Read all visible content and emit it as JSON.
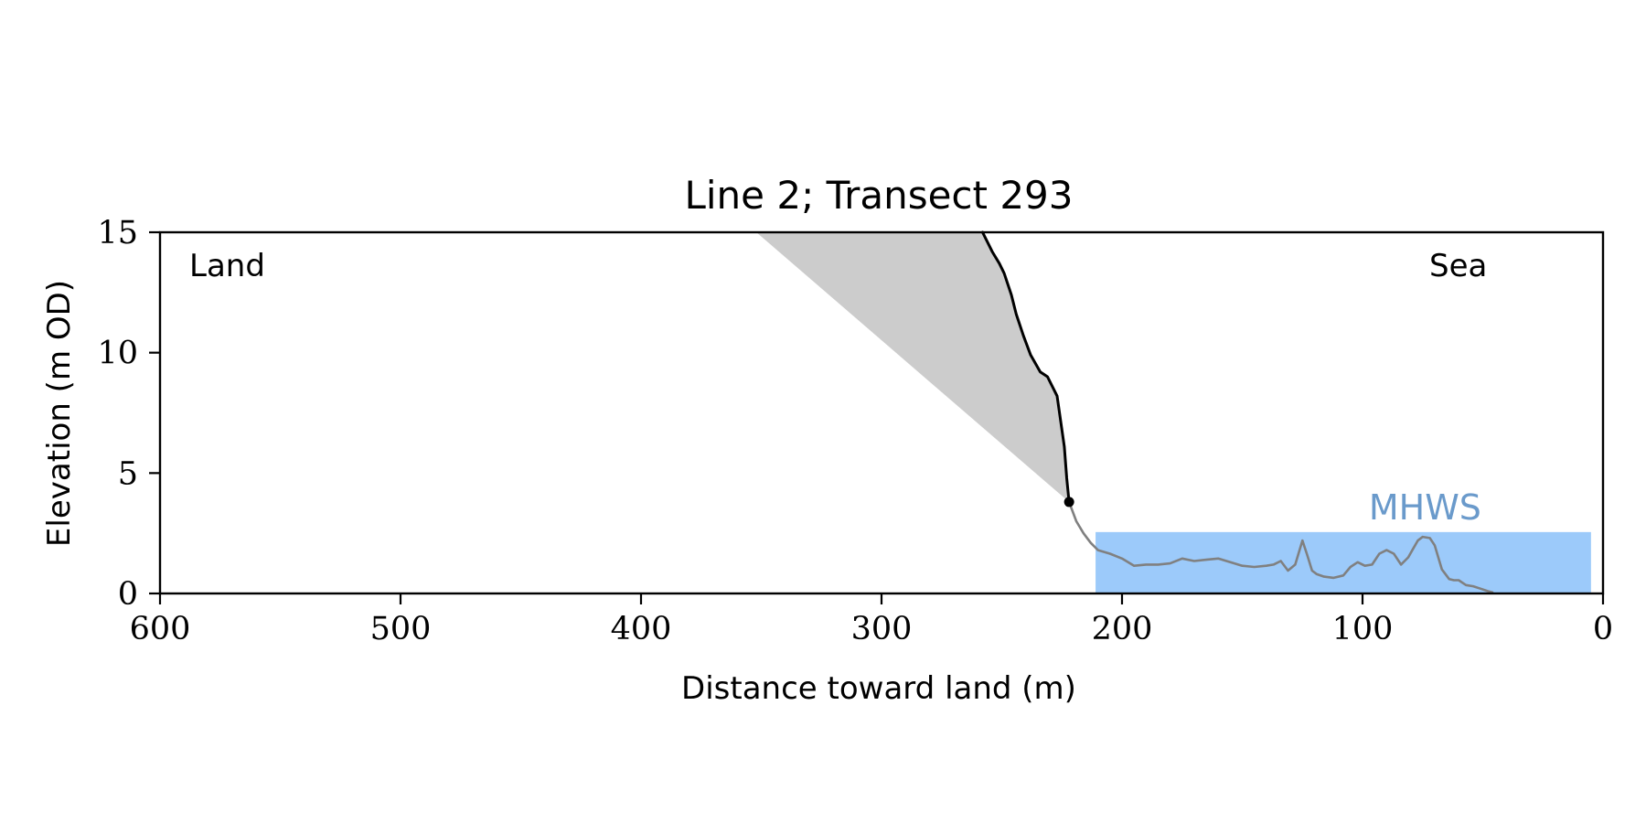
{
  "chart_data": {
    "type": "line",
    "title": "Line 2; Transect 293",
    "xlabel": "Distance toward land (m)",
    "ylabel": "Elevation (m OD)",
    "xlim": [
      600,
      0
    ],
    "ylim": [
      0,
      15
    ],
    "x_reversed": true,
    "xticks": [
      600,
      500,
      400,
      300,
      200,
      100,
      0
    ],
    "yticks": [
      0,
      5,
      10,
      15
    ],
    "grid": false,
    "annotations": {
      "left": "Land",
      "right": "Sea"
    },
    "mhws": {
      "label": "MHWS",
      "level": 2.55,
      "x_range": [
        211,
        5
      ],
      "fill_color": "#9ccafa",
      "label_color": "#6a9acb"
    },
    "shaded_region": {
      "color": "#cccccc",
      "x_top": [
        352,
        258
      ],
      "apex": [
        222,
        3.8
      ]
    },
    "series": [
      {
        "kind": "cliff",
        "color": "#000000",
        "x": [
          258,
          254,
          251,
          249,
          246,
          244,
          241,
          238,
          234,
          231,
          227,
          224,
          223,
          222
        ],
        "y": [
          15.0,
          14.2,
          13.7,
          13.3,
          12.4,
          11.6,
          10.7,
          9.9,
          9.2,
          9.0,
          8.2,
          6.1,
          4.8,
          3.8
        ]
      },
      {
        "kind": "foreshore",
        "color": "#808080",
        "x": [
          222,
          219,
          216,
          213,
          210,
          205,
          200,
          195,
          190,
          185,
          180,
          175,
          170,
          165,
          160,
          155,
          150,
          145,
          140,
          137,
          134,
          131,
          128,
          125,
          123,
          121,
          119,
          116,
          112,
          108,
          105,
          102,
          99,
          96,
          93,
          90,
          87,
          84,
          81,
          79,
          77,
          75,
          72,
          70,
          67,
          64,
          62,
          60,
          57,
          54,
          51,
          48,
          46
        ],
        "y": [
          3.8,
          3.0,
          2.5,
          2.1,
          1.8,
          1.65,
          1.45,
          1.15,
          1.2,
          1.2,
          1.25,
          1.45,
          1.35,
          1.4,
          1.45,
          1.3,
          1.15,
          1.1,
          1.15,
          1.2,
          1.35,
          0.95,
          1.2,
          2.2,
          1.6,
          0.95,
          0.8,
          0.7,
          0.65,
          0.75,
          1.1,
          1.3,
          1.15,
          1.2,
          1.65,
          1.8,
          1.65,
          1.2,
          1.5,
          1.85,
          2.2,
          2.35,
          2.3,
          2.0,
          1.0,
          0.6,
          0.55,
          0.55,
          0.35,
          0.3,
          0.2,
          0.1,
          0.05
        ]
      },
      {
        "kind": "cliff-toe",
        "color": "#000000",
        "x": [
          222
        ],
        "y": [
          3.8
        ]
      }
    ]
  }
}
